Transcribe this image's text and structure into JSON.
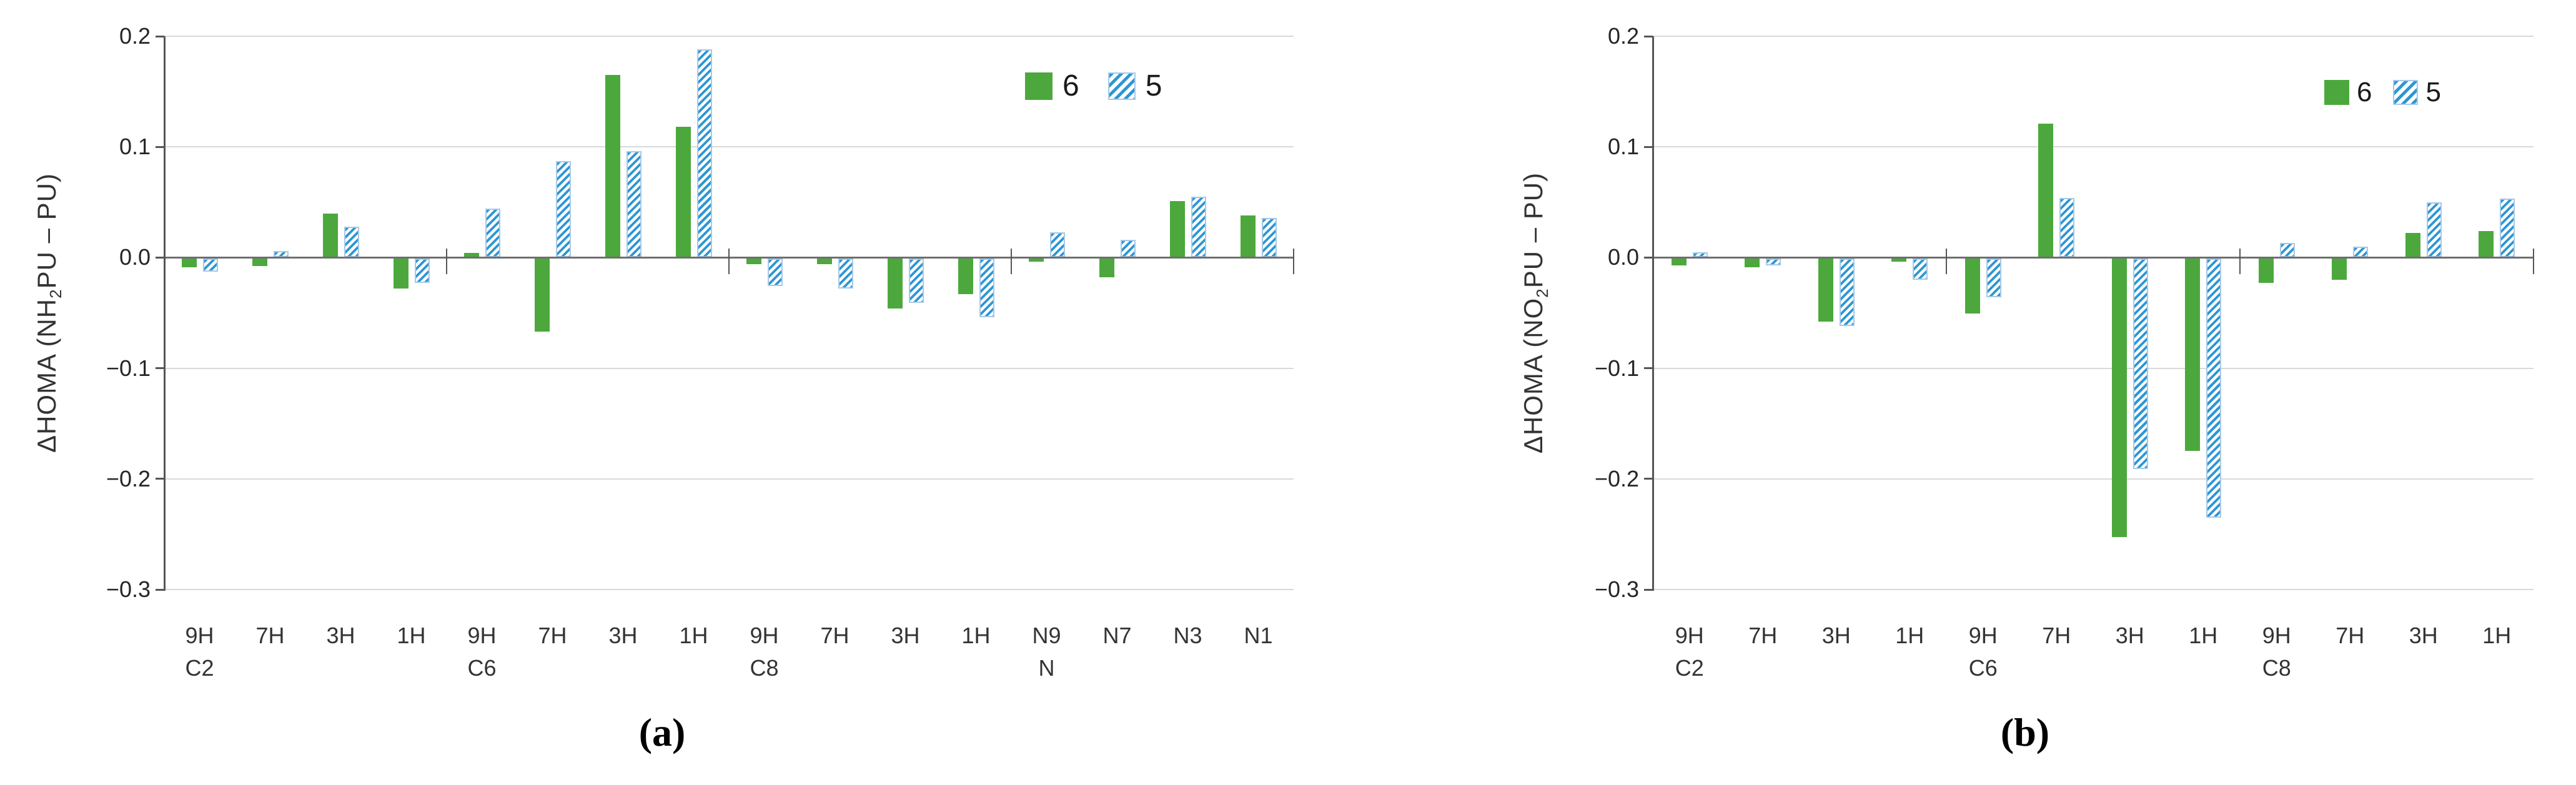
{
  "styles": {
    "series6_color": "#4ca83d",
    "series5_stripe_color": "#2e96d4",
    "series5_border_color": "#a6c9e8",
    "gridline_color": "#d9d9d9",
    "zero_axis_color": "#6e6e6e",
    "axis_color": "#555555",
    "text_color": "#262626"
  },
  "chart_data": [
    {
      "id": "a",
      "type": "bar",
      "caption": "(a)",
      "ylabel": "ΔHOMA (NH2PU – PU)",
      "ylabel_rich": {
        "pre": "ΔHOMA (NH",
        "sub": "2",
        "post": "PU – PU)"
      },
      "xlabel": "",
      "ylim": [
        -0.3,
        0.2
      ],
      "yticks": [
        "0.2",
        "0.1",
        "0.0",
        "−0.1",
        "−0.2",
        "−0.3"
      ],
      "ytick_values": [
        0.2,
        0.1,
        0.0,
        -0.1,
        -0.2,
        -0.3
      ],
      "grid": "horizontal",
      "legend_position": "top-right",
      "categories": [
        "9H",
        "7H",
        "3H",
        "1H",
        "9H",
        "7H",
        "3H",
        "1H",
        "9H",
        "7H",
        "3H",
        "1H",
        "N9",
        "N7",
        "N3",
        "N1"
      ],
      "groups": [
        {
          "label": "C2",
          "span": 4
        },
        {
          "label": "C6",
          "span": 4
        },
        {
          "label": "C8",
          "span": 4
        },
        {
          "label": "N",
          "span": 4
        }
      ],
      "series": [
        {
          "name": "6",
          "values": [
            -0.008,
            -0.007,
            0.04,
            -0.027,
            0.004,
            -0.066,
            0.165,
            0.118,
            -0.005,
            -0.005,
            -0.045,
            -0.032,
            -0.003,
            -0.017,
            0.051,
            0.038
          ]
        },
        {
          "name": "5",
          "values": [
            -0.012,
            0.006,
            0.028,
            -0.022,
            0.044,
            0.087,
            0.096,
            0.188,
            -0.025,
            -0.027,
            -0.04,
            -0.053,
            0.023,
            0.016,
            0.055,
            0.036
          ]
        }
      ]
    },
    {
      "id": "b",
      "type": "bar",
      "caption": "(b)",
      "ylabel": "ΔHOMA (NO2PU – PU)",
      "ylabel_rich": {
        "pre": "ΔHOMA (NO",
        "sub": "2",
        "post": "PU – PU)"
      },
      "xlabel": "",
      "ylim": [
        -0.3,
        0.2
      ],
      "yticks": [
        "0.2",
        "0.1",
        "0.0",
        "−0.1",
        "−0.2",
        "−0.3"
      ],
      "ytick_values": [
        0.2,
        0.1,
        0.0,
        -0.1,
        -0.2,
        -0.3
      ],
      "grid": "horizontal",
      "legend_position": "top-right",
      "categories": [
        "9H",
        "7H",
        "3H",
        "1H",
        "9H",
        "7H",
        "3H",
        "1H",
        "9H",
        "7H",
        "3H",
        "1H"
      ],
      "groups": [
        {
          "label": "C2",
          "span": 4
        },
        {
          "label": "C6",
          "span": 4
        },
        {
          "label": "C8",
          "span": 4
        }
      ],
      "series": [
        {
          "name": "6",
          "values": [
            -0.006,
            -0.008,
            -0.057,
            -0.003,
            -0.05,
            0.121,
            -0.252,
            -0.174,
            -0.022,
            -0.019,
            0.022,
            0.024
          ]
        },
        {
          "name": "5",
          "values": [
            0.005,
            -0.006,
            -0.061,
            -0.019,
            -0.035,
            0.054,
            -0.19,
            -0.234,
            0.013,
            0.01,
            0.05,
            0.053
          ]
        }
      ]
    }
  ]
}
